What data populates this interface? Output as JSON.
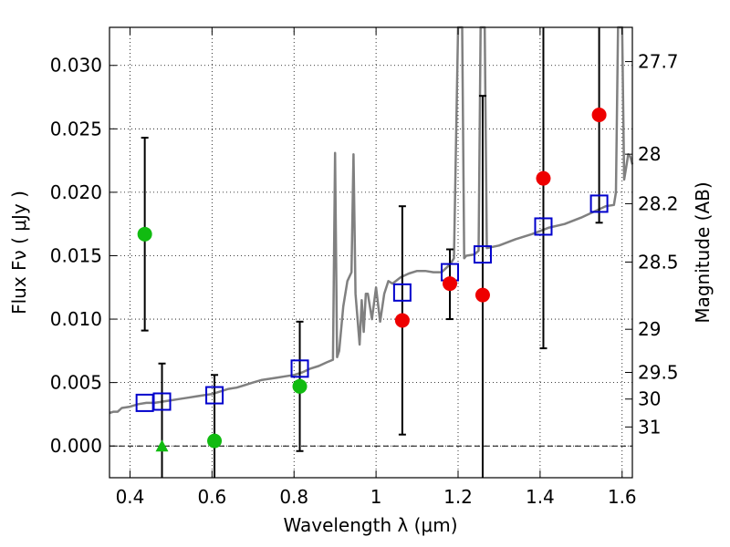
{
  "chart_data": {
    "type": "scatter",
    "xlabel": "Wavelength  λ (μm)",
    "ylabel": "Flux  Fν  ( μJy )",
    "y2label": "Magnitude (AB)",
    "xlim": [
      0.35,
      1.625
    ],
    "ylim": [
      -0.0025,
      0.033
    ],
    "grid": true,
    "x_ticks": [
      0.4,
      0.6,
      0.8,
      1.0,
      1.2,
      1.4,
      1.6
    ],
    "x_tick_labels": [
      "0.4",
      "0.6",
      "0.8",
      "1",
      "1.2",
      "1.4",
      "1.6"
    ],
    "y_ticks": [
      0.0,
      0.005,
      0.01,
      0.015,
      0.02,
      0.025,
      0.03
    ],
    "y_tick_labels": [
      "0.000",
      "0.005",
      "0.010",
      "0.015",
      "0.020",
      "0.025",
      "0.030"
    ],
    "mag_ticks": [
      {
        "label": "27.7",
        "flux": 0.0303
      },
      {
        "label": "28",
        "flux": 0.023
      },
      {
        "label": "28.2",
        "flux": 0.0191
      },
      {
        "label": "28.5",
        "flux": 0.0145
      },
      {
        "label": "29",
        "flux": 0.0092
      },
      {
        "label": "29.5",
        "flux": 0.0058
      },
      {
        "label": "30",
        "flux": 0.0037
      },
      {
        "label": "31",
        "flux": 0.0015
      }
    ],
    "colors": {
      "model": "#808080",
      "model_photometry": "#0000cc",
      "green": "#11bb11",
      "red": "#ee0000",
      "errorbar": "#000000",
      "zero_line": "#000000"
    },
    "series": [
      {
        "name": "model spectrum",
        "kind": "line",
        "x": [
          0.35,
          0.36,
          0.37,
          0.38,
          0.4,
          0.42,
          0.44,
          0.46,
          0.48,
          0.5,
          0.52,
          0.54,
          0.56,
          0.58,
          0.6,
          0.62,
          0.64,
          0.66,
          0.68,
          0.7,
          0.72,
          0.74,
          0.76,
          0.78,
          0.8,
          0.82,
          0.84,
          0.86,
          0.88,
          0.895,
          0.9,
          0.905,
          0.91,
          0.92,
          0.93,
          0.94,
          0.945,
          0.95,
          0.96,
          0.965,
          0.97,
          0.975,
          0.98,
          0.99,
          1.0,
          1.01,
          1.02,
          1.03,
          1.04,
          1.06,
          1.08,
          1.1,
          1.12,
          1.14,
          1.16,
          1.18,
          1.19,
          1.2,
          1.205,
          1.21,
          1.215,
          1.22,
          1.24,
          1.25,
          1.255,
          1.26,
          1.265,
          1.27,
          1.3,
          1.34,
          1.38,
          1.42,
          1.46,
          1.5,
          1.54,
          1.56,
          1.58,
          1.585,
          1.59,
          1.595,
          1.6,
          1.605,
          1.61,
          1.615,
          1.62,
          1.625
        ],
        "y": [
          0.0026,
          0.0027,
          0.0027,
          0.003,
          0.0031,
          0.0033,
          0.0034,
          0.0034,
          0.0035,
          0.0036,
          0.0037,
          0.0038,
          0.0039,
          0.004,
          0.0041,
          0.0043,
          0.0045,
          0.0046,
          0.0048,
          0.005,
          0.0052,
          0.0053,
          0.0054,
          0.0055,
          0.0056,
          0.0058,
          0.0061,
          0.0063,
          0.0066,
          0.0068,
          0.0231,
          0.007,
          0.0075,
          0.011,
          0.013,
          0.0137,
          0.023,
          0.012,
          0.008,
          0.0115,
          0.009,
          0.012,
          0.012,
          0.01,
          0.0125,
          0.0098,
          0.012,
          0.013,
          0.0128,
          0.0133,
          0.0136,
          0.0138,
          0.0138,
          0.0137,
          0.0137,
          0.0143,
          0.0148,
          0.033,
          0.033,
          0.033,
          0.0148,
          0.015,
          0.0151,
          0.0154,
          0.033,
          0.033,
          0.033,
          0.0156,
          0.0158,
          0.0163,
          0.0167,
          0.0172,
          0.0175,
          0.018,
          0.0186,
          0.0189,
          0.019,
          0.02,
          0.033,
          0.033,
          0.033,
          0.021,
          0.022,
          0.023,
          0.0228,
          0.0222
        ]
      },
      {
        "name": "model photometry",
        "kind": "square",
        "x": [
          0.436,
          0.478,
          0.606,
          0.814,
          1.064,
          1.18,
          1.26,
          1.408,
          1.544
        ],
        "y": [
          0.0034,
          0.0035,
          0.004,
          0.0061,
          0.0121,
          0.0137,
          0.0151,
          0.0173,
          0.0191
        ]
      },
      {
        "name": "optical measurements",
        "kind": "circle",
        "x": [
          0.436,
          0.606,
          0.814
        ],
        "y": [
          0.0167,
          0.0004,
          0.0047
        ],
        "err_low": [
          0.0091,
          -0.0025,
          -0.0004
        ],
        "err_high": [
          0.0243,
          0.0056,
          0.0098
        ]
      },
      {
        "name": "upper limit",
        "kind": "triangle",
        "x": [
          0.478
        ],
        "y": [
          0.0
        ],
        "err_low": [
          -0.0025
        ],
        "err_high": [
          0.0065
        ]
      },
      {
        "name": "near-infrared measurements",
        "kind": "circle",
        "x": [
          1.064,
          1.18,
          1.26,
          1.408,
          1.544
        ],
        "y": [
          0.0099,
          0.0128,
          0.0119,
          0.0211,
          0.0261
        ],
        "err_low": [
          0.0009,
          0.01,
          -0.0025,
          0.0077,
          0.0176
        ],
        "err_high": [
          0.0189,
          0.0155,
          0.0276,
          0.033,
          0.033
        ]
      }
    ]
  }
}
